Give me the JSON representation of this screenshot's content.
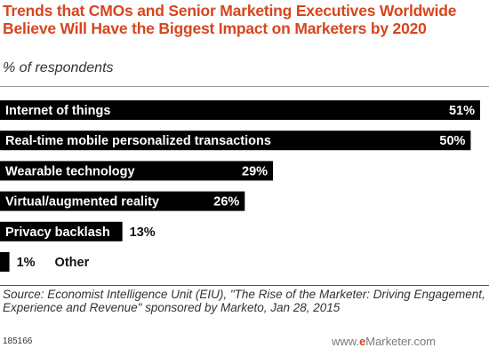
{
  "title": "Trends that CMOs and Senior Marketing Executives Worldwide Believe Will Have the Biggest Impact on Marketers by 2020",
  "subtitle": "% of respondents",
  "source": "Source: Economist Intelligence Unit (EIU), \"The Rise of the Marketer: Driving Engagement, Experience and Revenue\" sponsored by Marketo, Jan 28, 2015",
  "footer_id": "185166",
  "brand": {
    "prefix": "www.",
    "mark": "e",
    "name": "Marketer",
    "suffix": ".com"
  },
  "colors": {
    "title": "#d7451e",
    "bar": "#000000",
    "label_inside": "#ffffff",
    "label_outside": "#111111"
  },
  "chart_data": {
    "type": "bar",
    "orientation": "horizontal",
    "categories": [
      "Internet of things",
      "Real-time mobile personalized transactions",
      "Wearable technology",
      "Virtual/augmented reality",
      "Privacy backlash",
      "Other"
    ],
    "values": [
      51,
      50,
      29,
      26,
      13,
      1
    ],
    "value_labels": [
      "51%",
      "50%",
      "29%",
      "26%",
      "13%",
      "1%"
    ],
    "unit": "%",
    "xlim": [
      0,
      51
    ],
    "grid": false,
    "legend": false
  }
}
